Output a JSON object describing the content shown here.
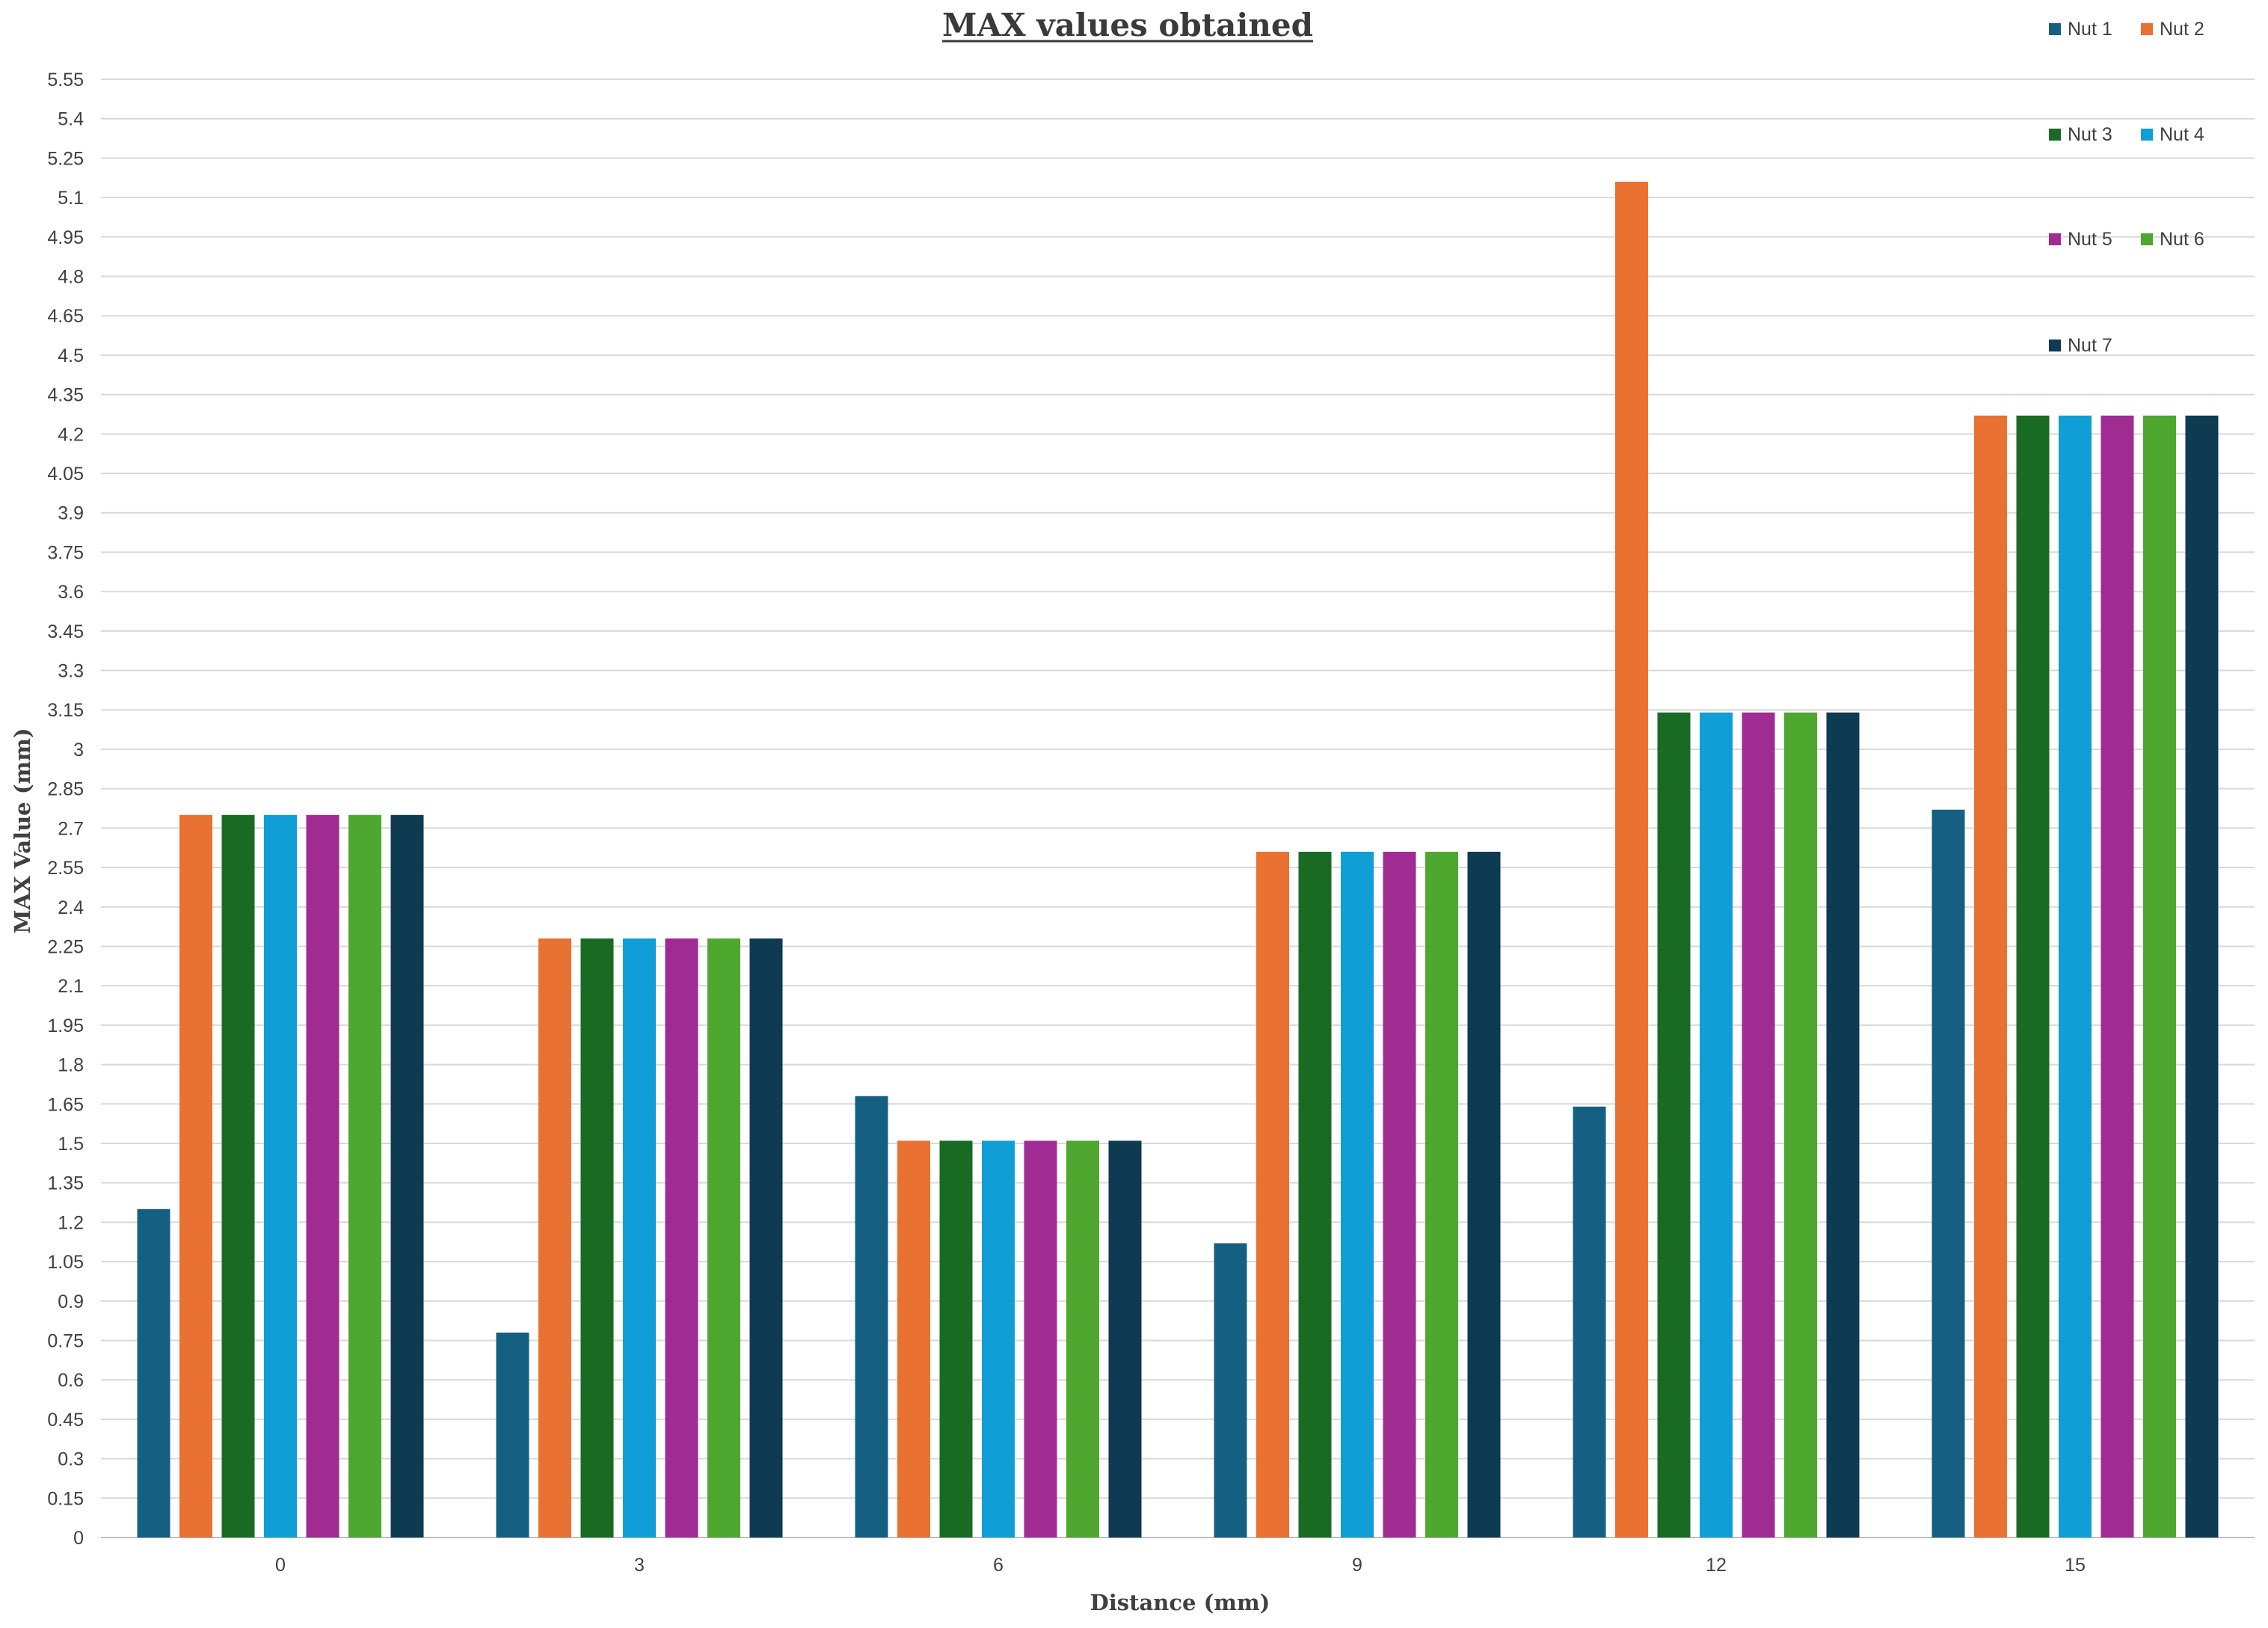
{
  "chart_data": {
    "type": "bar",
    "title": "MAX values obtained",
    "xlabel": "Distance (mm)",
    "ylabel": "MAX Value (mm)",
    "categories": [
      "0",
      "3",
      "6",
      "9",
      "12",
      "15"
    ],
    "ylim": [
      0,
      5.55
    ],
    "ytick_step": 0.15,
    "yticks": [
      "0",
      "0.15",
      "0.3",
      "0.45",
      "0.6",
      "0.75",
      "0.9",
      "1.05",
      "1.2",
      "1.35",
      "1.5",
      "1.65",
      "1.8",
      "1.95",
      "2.1",
      "2.25",
      "2.4",
      "2.55",
      "2.7",
      "2.85",
      "3",
      "3.15",
      "3.3",
      "3.45",
      "3.6",
      "3.75",
      "3.9",
      "4.05",
      "4.2",
      "4.35",
      "4.5",
      "4.65",
      "4.8",
      "4.95",
      "5.1",
      "5.25",
      "5.4",
      "5.55"
    ],
    "grid": true,
    "legend_position": "top-right",
    "series": [
      {
        "name": "Nut 1",
        "color": "#156082",
        "values": [
          1.25,
          0.78,
          1.68,
          1.12,
          1.64,
          2.77
        ]
      },
      {
        "name": "Nut 2",
        "color": "#E97132",
        "values": [
          2.75,
          2.28,
          1.51,
          2.61,
          5.16,
          4.27
        ]
      },
      {
        "name": "Nut 3",
        "color": "#196B24",
        "values": [
          2.75,
          2.28,
          1.51,
          2.61,
          3.14,
          4.27
        ]
      },
      {
        "name": "Nut 4",
        "color": "#0F9ED5",
        "values": [
          2.75,
          2.28,
          1.51,
          2.61,
          3.14,
          4.27
        ]
      },
      {
        "name": "Nut 5",
        "color": "#A02B93",
        "values": [
          2.75,
          2.28,
          1.51,
          2.61,
          3.14,
          4.27
        ]
      },
      {
        "name": "Nut 6",
        "color": "#4EA72E",
        "values": [
          2.75,
          2.28,
          1.51,
          2.61,
          3.14,
          4.27
        ]
      },
      {
        "name": "Nut 7",
        "color": "#0E3A52",
        "values": [
          2.75,
          2.28,
          1.51,
          2.61,
          3.14,
          4.27
        ]
      }
    ]
  }
}
